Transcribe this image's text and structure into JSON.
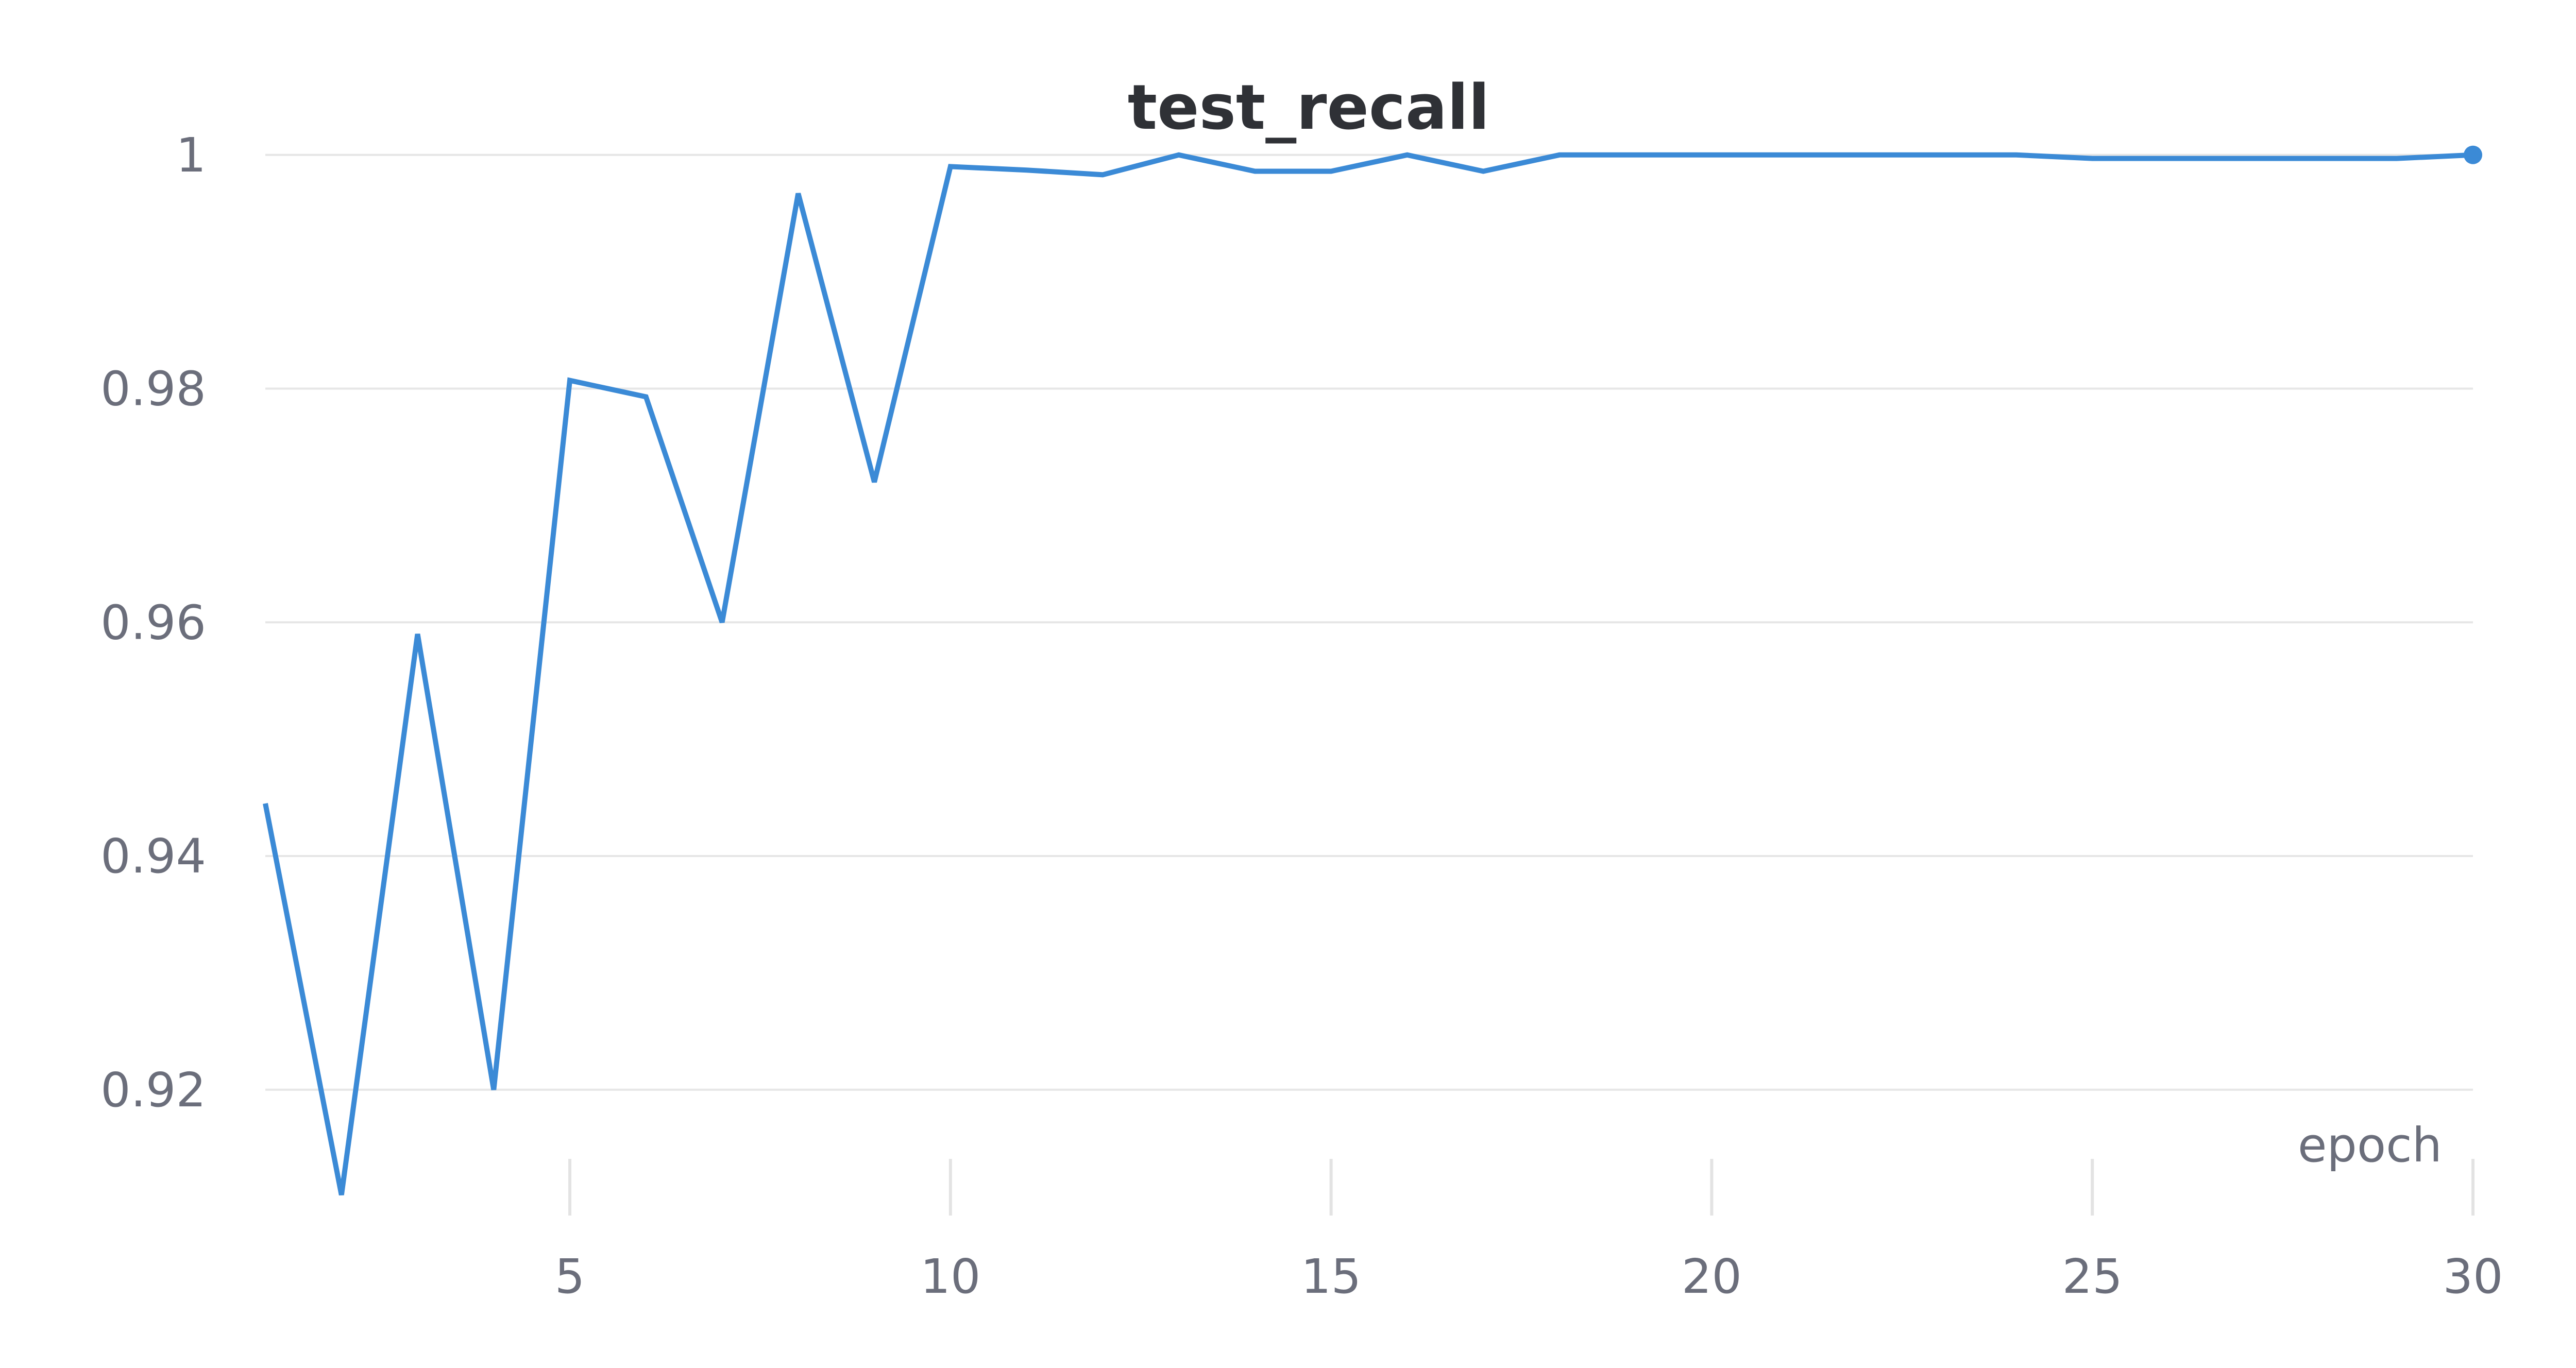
{
  "chart_data": {
    "type": "line",
    "title": "test_recall",
    "xlabel": "epoch",
    "ylabel": "",
    "xlim": [
      1,
      30
    ],
    "ylim": [
      0.911,
      1.004
    ],
    "x_ticks": [
      5,
      10,
      15,
      20,
      25,
      30
    ],
    "y_ticks": [
      0.92,
      0.94,
      0.96,
      0.98,
      1
    ],
    "y_tick_labels": [
      "0.92",
      "0.94",
      "0.96",
      "0.98",
      "1"
    ],
    "grid": "horizontal",
    "color": "#3b8ad6",
    "series": [
      {
        "x": [
          1,
          2,
          3,
          4,
          5,
          6,
          7,
          8,
          9,
          10,
          11,
          12,
          13,
          14,
          15,
          16,
          17,
          18,
          19,
          20,
          21,
          22,
          23,
          24,
          25,
          26,
          27,
          28,
          29,
          30
        ],
        "values": [
          0.9445,
          0.911,
          0.959,
          0.92,
          0.9807,
          0.9793,
          0.96,
          0.9967,
          0.972,
          0.999,
          0.9987,
          0.9983,
          1.0,
          0.9986,
          0.9986,
          1.0,
          0.9986,
          1.0,
          1.0,
          1.0,
          1.0,
          1.0,
          1.0,
          1.0,
          0.9997,
          0.9997,
          0.9997,
          0.9997,
          0.9997,
          1.0
        ]
      }
    ]
  }
}
